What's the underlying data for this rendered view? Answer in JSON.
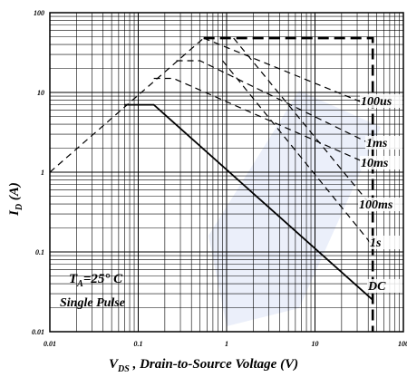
{
  "chart_data": {
    "type": "line",
    "y_label": {
      "main": "I",
      "sub": "D",
      "rest": " (A)"
    },
    "x_label": {
      "main": "V",
      "sub": "DS",
      "rest": " , Drain-to-Source Voltage (V)"
    },
    "annotation": {
      "main": "T",
      "sub": "A",
      "rest": "=25° C",
      "line2": "Single  Pulse"
    },
    "xlog": true,
    "ylog": true,
    "grid": true,
    "xlim": [
      0.01,
      100
    ],
    "ylim": [
      0.01,
      100
    ],
    "xticks": [
      0.01,
      0.1,
      1,
      10,
      100
    ],
    "yticks": [
      0.01,
      0.1,
      1,
      10,
      100
    ],
    "series": [
      {
        "style": "dashed",
        "color": "#000000",
        "x": [
          0.01,
          0.55
        ],
        "y": [
          1,
          48
        ]
      },
      {
        "style": "dashed-heavy",
        "color": "#000000",
        "x": [
          0.55,
          45,
          45
        ],
        "y": [
          48,
          48,
          0.01
        ]
      },
      {
        "name": "100us",
        "style": "dashed",
        "color": "#000000",
        "x": [
          0.55,
          40
        ],
        "y": [
          48,
          7
        ]
      },
      {
        "name": "1ms",
        "style": "dashed",
        "color": "#000000",
        "x": [
          0.27,
          0.5,
          45
        ],
        "y": [
          25,
          25,
          2.2
        ]
      },
      {
        "name": "10ms",
        "style": "dashed",
        "color": "#000000",
        "x": [
          0.15,
          0.25,
          45
        ],
        "y": [
          15,
          15,
          1.2
        ]
      },
      {
        "name": "100ms",
        "style": "dashed",
        "color": "#000000",
        "x": [
          1.2,
          45
        ],
        "y": [
          48,
          0.36
        ]
      },
      {
        "name": "1s",
        "style": "dashed",
        "color": "#000000",
        "x": [
          0.9,
          45
        ],
        "y": [
          25,
          0.12
        ]
      },
      {
        "name": "DC",
        "style": "solid",
        "color": "#000000",
        "x": [
          0.07,
          0.15,
          45
        ],
        "y": [
          7,
          7,
          0.025
        ]
      }
    ]
  }
}
